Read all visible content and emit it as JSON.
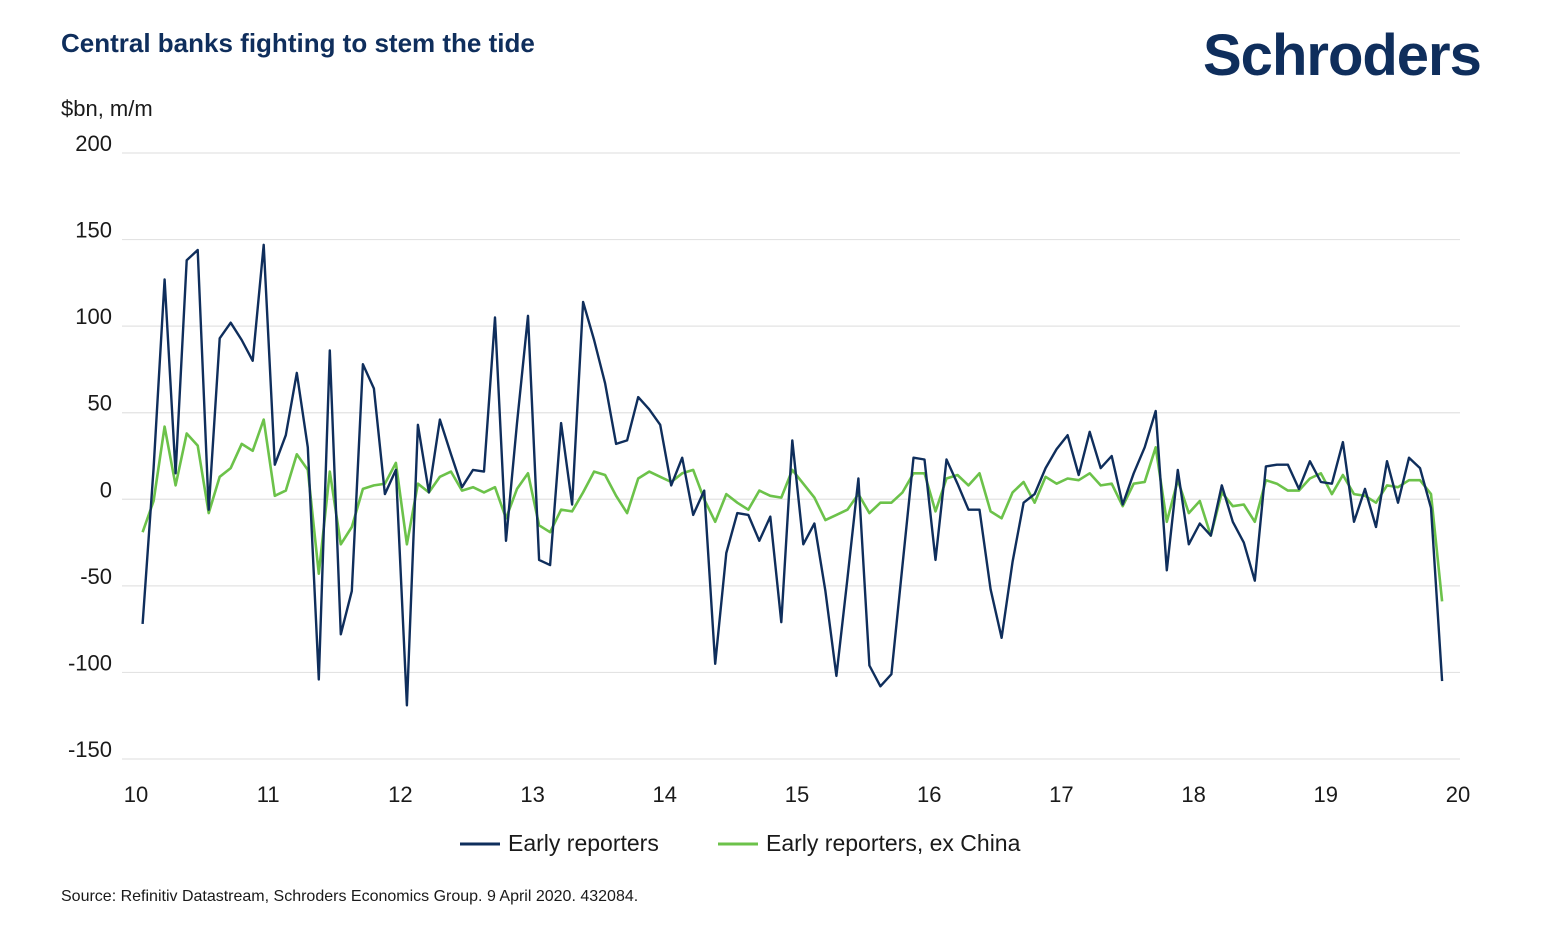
{
  "logo": "Schroders",
  "source": "Source: Refinitiv Datastream, Schroders Economics Group. 9 April 2020. 432084.",
  "colors": {
    "navy": "#0f2e5c",
    "green": "#6cc24a",
    "grid": "#e3e3e3"
  },
  "chart_data": {
    "type": "line",
    "title": "Central banks fighting to stem the tide",
    "ylabel": "$bn, m/m",
    "xlabel": "",
    "ylim": [
      -150,
      200
    ],
    "xlim": [
      10,
      20
    ],
    "y_ticks": [
      "200",
      "150",
      "100",
      "50",
      "0",
      "-50",
      "-100",
      "-150"
    ],
    "x_ticks": [
      "10",
      "11",
      "12",
      "13",
      "14",
      "15",
      "16",
      "17",
      "18",
      "19",
      "20"
    ],
    "grid": true,
    "legend_position": "bottom-center",
    "series": [
      {
        "name": "Early reporters",
        "color": "#0f2e5c",
        "x_start": 10.05,
        "x_step": 0.0833,
        "values": [
          -72,
          18,
          127,
          15,
          138,
          144,
          -6,
          93,
          102,
          92,
          80,
          147,
          20,
          37,
          73,
          30,
          -104,
          86,
          -78,
          -53,
          78,
          64,
          3,
          17,
          -119,
          43,
          4,
          46,
          26,
          7,
          17,
          16,
          105,
          -24,
          44,
          106,
          -35,
          -38,
          44,
          -3,
          114,
          92,
          67,
          32,
          34,
          59,
          52,
          43,
          8,
          24,
          -9,
          5,
          -95,
          -31,
          -8,
          -9,
          -24,
          -10,
          -71,
          34,
          -26,
          -14,
          -53,
          -102,
          -46,
          12,
          -96,
          -108,
          -101,
          -38,
          24,
          23,
          -35,
          23,
          9,
          -6,
          -6,
          -52,
          -80,
          -36,
          -2,
          3,
          18,
          29,
          37,
          14,
          39,
          18,
          25,
          -3,
          15,
          30,
          51,
          -41,
          17,
          -26,
          -14,
          -21,
          8,
          -13,
          -25,
          -47,
          19,
          20,
          20,
          6,
          22,
          10,
          9,
          33,
          -13,
          6,
          -16,
          22,
          -2,
          24,
          18,
          -5,
          -105
        ]
      },
      {
        "name": "Early reporters, ex China",
        "color": "#6cc24a",
        "x_start": 10.05,
        "x_step": 0.0833,
        "values": [
          -19,
          -1,
          42,
          8,
          38,
          31,
          -8,
          13,
          18,
          32,
          28,
          46,
          2,
          5,
          26,
          17,
          -43,
          16,
          -26,
          -16,
          6,
          8,
          9,
          21,
          -26,
          9,
          4,
          13,
          16,
          5,
          7,
          4,
          7,
          -11,
          6,
          15,
          -15,
          -19,
          -6,
          -7,
          4,
          16,
          14,
          2,
          -8,
          12,
          16,
          13,
          10,
          15,
          17,
          0,
          -13,
          3,
          -2,
          -6,
          5,
          2,
          1,
          17,
          9,
          1,
          -12,
          -9,
          -6,
          3,
          -8,
          -2,
          -2,
          4,
          15,
          15,
          -7,
          12,
          14,
          8,
          15,
          -7,
          -11,
          4,
          10,
          -2,
          13,
          9,
          12,
          11,
          15,
          8,
          9,
          -4,
          9,
          10,
          30,
          -13,
          11,
          -8,
          -1,
          -21,
          4,
          -4,
          -3,
          -13,
          11,
          9,
          5,
          5,
          12,
          15,
          3,
          14,
          3,
          2,
          -2,
          8,
          7,
          11,
          11,
          3,
          -59
        ]
      }
    ]
  }
}
